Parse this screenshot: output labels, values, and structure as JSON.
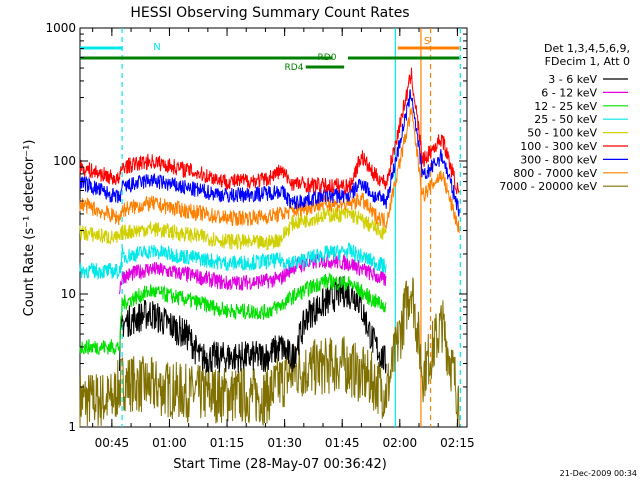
{
  "chart_data": {
    "type": "line",
    "title": "HESSI Observing Summary Count Rates",
    "xlabel": "Start Time (28-May-07 00:36:42)",
    "ylabel": "Count Rate (s⁻¹ detector⁻¹)",
    "y_scale": "log",
    "ylim": [
      1,
      1000
    ],
    "xlim": [
      "00:36:42",
      "02:17:30"
    ],
    "x_ticks": [
      "00:45",
      "01:00",
      "01:15",
      "01:30",
      "01:45",
      "02:00",
      "02:15"
    ],
    "y_ticks": [
      "1",
      "10",
      "100",
      "1000"
    ],
    "timestamp": "21-Dec-2009 00:34",
    "legend": {
      "placement": "right",
      "header": [
        "Det 1,3,4,5,6,9,",
        "FDecim 1, Att 0"
      ]
    },
    "series": [
      {
        "name": "3 - 6 keV",
        "color": "#000000",
        "points": [
          [
            "00:47:00",
            3.4
          ],
          [
            "00:47:40",
            6.0
          ],
          [
            "00:55:00",
            7.2
          ],
          [
            "01:05:00",
            4.8
          ],
          [
            "01:08:00",
            3.3
          ],
          [
            "01:25:00",
            3.4
          ],
          [
            "01:29:00",
            4.0
          ],
          [
            "01:32:00",
            3.3
          ],
          [
            "01:36:00",
            7.0
          ],
          [
            "01:45:00",
            10.5
          ],
          [
            "01:49:00",
            9.5
          ],
          [
            "01:53:00",
            4.4
          ],
          [
            "01:55:00",
            3.5
          ],
          [
            "01:56:30",
            3.0
          ]
        ]
      },
      {
        "name": "6 - 12 keV",
        "color": "#e000e0",
        "points": [
          [
            "00:47:00",
            11.0
          ],
          [
            "00:47:40",
            13.5
          ],
          [
            "00:55:00",
            15.5
          ],
          [
            "01:05:00",
            14.0
          ],
          [
            "01:15:00",
            12.0
          ],
          [
            "01:25:00",
            12.5
          ],
          [
            "01:29:00",
            13.0
          ],
          [
            "01:32:00",
            16.0
          ],
          [
            "01:40:00",
            18.0
          ],
          [
            "01:47:00",
            17.0
          ],
          [
            "01:53:00",
            14.0
          ],
          [
            "01:56:30",
            12.5
          ]
        ]
      },
      {
        "name": "12 - 25 keV",
        "color": "#00e000",
        "points": [
          [
            "00:36:42",
            4.0
          ],
          [
            "00:47:00",
            4.0
          ],
          [
            "00:47:40",
            8.5
          ],
          [
            "00:55:00",
            10.5
          ],
          [
            "01:05:00",
            9.0
          ],
          [
            "01:15:00",
            7.5
          ],
          [
            "01:25:00",
            7.3
          ],
          [
            "01:29:00",
            8.2
          ],
          [
            "01:32:00",
            9.5
          ],
          [
            "01:40:00",
            12.5
          ],
          [
            "01:47:00",
            12.0
          ],
          [
            "01:53:00",
            9.0
          ],
          [
            "01:56:30",
            8.0
          ]
        ]
      },
      {
        "name": "25 - 50 keV",
        "color": "#00e8e8",
        "points": [
          [
            "00:36:42",
            15.0
          ],
          [
            "00:47:00",
            14.8
          ],
          [
            "00:47:40",
            19.0
          ],
          [
            "00:55:00",
            21.0
          ],
          [
            "01:05:00",
            19.0
          ],
          [
            "01:15:00",
            17.0
          ],
          [
            "01:25:00",
            17.5
          ],
          [
            "01:29:00",
            18.0
          ],
          [
            "01:32:00",
            17.0
          ],
          [
            "01:40:00",
            20.0
          ],
          [
            "01:47:00",
            21.0
          ],
          [
            "01:53:00",
            17.5
          ],
          [
            "01:56:30",
            16.0
          ]
        ]
      },
      {
        "name": "50 - 100 keV",
        "color": "#d0d000",
        "points": [
          [
            "00:36:42",
            29.0
          ],
          [
            "00:47:00",
            26.0
          ],
          [
            "00:47:40",
            29.0
          ],
          [
            "00:55:00",
            31.0
          ],
          [
            "01:05:00",
            28.0
          ],
          [
            "01:15:00",
            25.0
          ],
          [
            "01:25:00",
            24.0
          ],
          [
            "01:29:00",
            26.0
          ],
          [
            "01:32:00",
            34.0
          ],
          [
            "01:40:00",
            39.0
          ],
          [
            "01:47:00",
            40.0
          ],
          [
            "01:53:00",
            32.0
          ],
          [
            "01:56:30",
            28.0
          ]
        ]
      },
      {
        "name": "100 - 300 keV",
        "color": "#ff0000",
        "points": [
          [
            "00:36:42",
            90.0
          ],
          [
            "00:47:00",
            72.0
          ],
          [
            "00:47:40",
            90.0
          ],
          [
            "00:55:00",
            100.0
          ],
          [
            "01:05:00",
            85.0
          ],
          [
            "01:15:00",
            70.0
          ],
          [
            "01:25:00",
            72.0
          ],
          [
            "01:29:00",
            85.0
          ],
          [
            "01:32:00",
            68.0
          ],
          [
            "01:40:00",
            65.0
          ],
          [
            "01:47:00",
            65.0
          ],
          [
            "01:50:00",
            110.0
          ],
          [
            "01:53:00",
            80.0
          ],
          [
            "01:56:30",
            68.0
          ],
          [
            "02:03:00",
            450.0
          ],
          [
            "02:06:00",
            100.0
          ],
          [
            "02:11:00",
            150.0
          ],
          [
            "02:15:30",
            55.0
          ]
        ]
      },
      {
        "name": "300 - 800 keV",
        "color": "#0000ff",
        "points": [
          [
            "00:36:42",
            70.0
          ],
          [
            "00:47:00",
            52.0
          ],
          [
            "00:47:40",
            63.0
          ],
          [
            "00:55:00",
            72.0
          ],
          [
            "01:05:00",
            62.0
          ],
          [
            "01:15:00",
            55.0
          ],
          [
            "01:25:00",
            57.0
          ],
          [
            "01:29:00",
            60.0
          ],
          [
            "01:32:00",
            48.0
          ],
          [
            "01:40:00",
            55.0
          ],
          [
            "01:47:00",
            55.0
          ],
          [
            "01:50:00",
            70.0
          ],
          [
            "01:53:00",
            55.0
          ],
          [
            "01:56:30",
            50.0
          ],
          [
            "02:03:00",
            330.0
          ],
          [
            "02:06:00",
            75.0
          ],
          [
            "02:11:00",
            110.0
          ],
          [
            "02:15:30",
            42.0
          ]
        ]
      },
      {
        "name": "800 - 7000 keV",
        "color": "#ff8000",
        "points": [
          [
            "00:36:42",
            48.0
          ],
          [
            "00:47:00",
            37.0
          ],
          [
            "00:47:40",
            43.0
          ],
          [
            "00:55:00",
            48.0
          ],
          [
            "01:05:00",
            42.0
          ],
          [
            "01:15:00",
            37.0
          ],
          [
            "01:25:00",
            38.0
          ],
          [
            "01:29:00",
            40.0
          ],
          [
            "01:32:00",
            42.0
          ],
          [
            "01:40:00",
            48.0
          ],
          [
            "01:47:00",
            47.0
          ],
          [
            "01:50:00",
            52.0
          ],
          [
            "01:53:00",
            40.0
          ],
          [
            "01:56:30",
            35.0
          ],
          [
            "02:03:00",
            240.0
          ],
          [
            "02:06:00",
            55.0
          ],
          [
            "02:11:00",
            80.0
          ],
          [
            "02:15:30",
            30.0
          ]
        ]
      },
      {
        "name": "7000 - 20000 keV",
        "color": "#807000",
        "points": [
          [
            "00:36:42",
            1.6
          ],
          [
            "00:45:00",
            1.6
          ],
          [
            "00:47:40",
            2.2
          ],
          [
            "01:05:00",
            1.8
          ],
          [
            "01:25:00",
            1.7
          ],
          [
            "01:32:00",
            2.6
          ],
          [
            "01:45:00",
            3.0
          ],
          [
            "01:53:00",
            2.2
          ],
          [
            "01:56:30",
            1.8
          ],
          [
            "02:03:00",
            12.0
          ],
          [
            "02:06:00",
            2.5
          ],
          [
            "02:11:00",
            6.0
          ],
          [
            "02:15:30",
            1.6
          ]
        ]
      }
    ],
    "bars": [
      {
        "label": "N",
        "color": "#00e8e8",
        "segments": [
          [
            "00:36:42",
            "00:47:40"
          ]
        ]
      },
      {
        "label": "S",
        "color": "#ff8000",
        "segments": [
          [
            "01:59:30",
            "02:15:30"
          ]
        ]
      },
      {
        "label": "RD0",
        "color": "#008000",
        "segments": [
          [
            "00:36:42",
            "01:42:30"
          ],
          [
            "01:46:30",
            "02:15:30"
          ]
        ]
      },
      {
        "label": "RD4",
        "color": "#008000",
        "segments": [
          [
            "01:35:30",
            "01:45:30"
          ]
        ]
      }
    ],
    "markers": [
      {
        "color": "#00e8e8",
        "style": "dashed",
        "time": "00:47:40"
      },
      {
        "color": "#00e8e8",
        "style": "solid",
        "time": "01:58:50"
      },
      {
        "color": "#00e8e8",
        "style": "dashed",
        "time": "02:15:45"
      },
      {
        "color": "#ff8000",
        "style": "solid",
        "time": "02:05:30"
      },
      {
        "color": "#ff8000",
        "style": "dashed",
        "time": "02:08:00"
      }
    ]
  }
}
